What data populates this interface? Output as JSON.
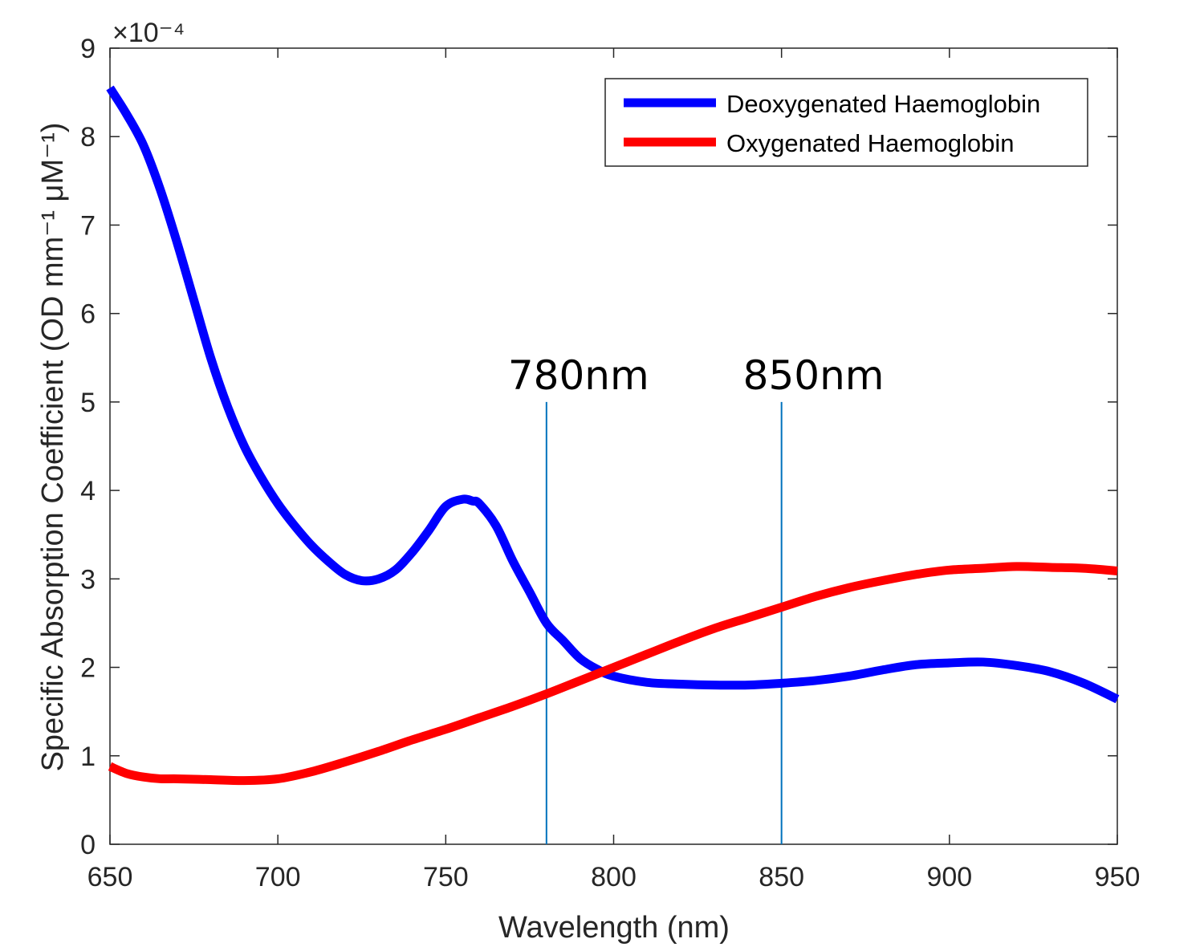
{
  "chart_data": {
    "type": "line",
    "xlabel": "Wavelength (nm)",
    "ylabel": "Specific Absorption Coefficient (OD mm⁻¹ μM⁻¹)",
    "y_exponent_label": "×10⁻⁴",
    "xlim": [
      650,
      950
    ],
    "ylim": [
      0,
      9
    ],
    "x_ticks": [
      "650",
      "700",
      "750",
      "800",
      "850",
      "900",
      "950"
    ],
    "y_ticks": [
      "0",
      "1",
      "2",
      "3",
      "4",
      "5",
      "6",
      "7",
      "8",
      "9"
    ],
    "grid": false,
    "legend_position": "top-right",
    "series": [
      {
        "name": "Deoxygenated Haemoglobin",
        "color": "#0000ff",
        "x": [
          650,
          655,
          660,
          665,
          670,
          675,
          680,
          685,
          690,
          695,
          700,
          705,
          710,
          715,
          720,
          725,
          730,
          735,
          740,
          745,
          750,
          755,
          758,
          760,
          765,
          770,
          775,
          780,
          785,
          790,
          795,
          800,
          810,
          820,
          830,
          840,
          850,
          860,
          870,
          880,
          890,
          900,
          910,
          920,
          930,
          940,
          950
        ],
        "y": [
          8.55,
          8.25,
          7.9,
          7.4,
          6.8,
          6.15,
          5.5,
          4.95,
          4.5,
          4.15,
          3.85,
          3.6,
          3.38,
          3.2,
          3.05,
          2.98,
          3.0,
          3.1,
          3.3,
          3.55,
          3.82,
          3.9,
          3.88,
          3.85,
          3.6,
          3.2,
          2.85,
          2.5,
          2.3,
          2.1,
          1.98,
          1.9,
          1.83,
          1.81,
          1.8,
          1.8,
          1.82,
          1.85,
          1.9,
          1.97,
          2.03,
          2.05,
          2.06,
          2.02,
          1.95,
          1.82,
          1.64
        ]
      },
      {
        "name": "Oxygenated Haemoglobin",
        "color": "#ff0000",
        "x": [
          650,
          655,
          660,
          665,
          670,
          680,
          690,
          700,
          710,
          720,
          730,
          740,
          750,
          760,
          770,
          780,
          790,
          800,
          810,
          820,
          830,
          840,
          850,
          860,
          870,
          880,
          890,
          900,
          910,
          920,
          930,
          940,
          950
        ],
        "y": [
          0.88,
          0.8,
          0.76,
          0.74,
          0.74,
          0.73,
          0.72,
          0.74,
          0.82,
          0.93,
          1.05,
          1.18,
          1.3,
          1.43,
          1.56,
          1.7,
          1.85,
          2.0,
          2.15,
          2.3,
          2.44,
          2.56,
          2.68,
          2.8,
          2.9,
          2.98,
          3.05,
          3.1,
          3.12,
          3.14,
          3.13,
          3.12,
          3.09
        ]
      }
    ],
    "annotations": [
      {
        "label": "780nm",
        "x": 780,
        "y_from": 0,
        "y_to": 5
      },
      {
        "label": "850nm",
        "x": 850,
        "y_from": 0,
        "y_to": 5
      }
    ]
  }
}
